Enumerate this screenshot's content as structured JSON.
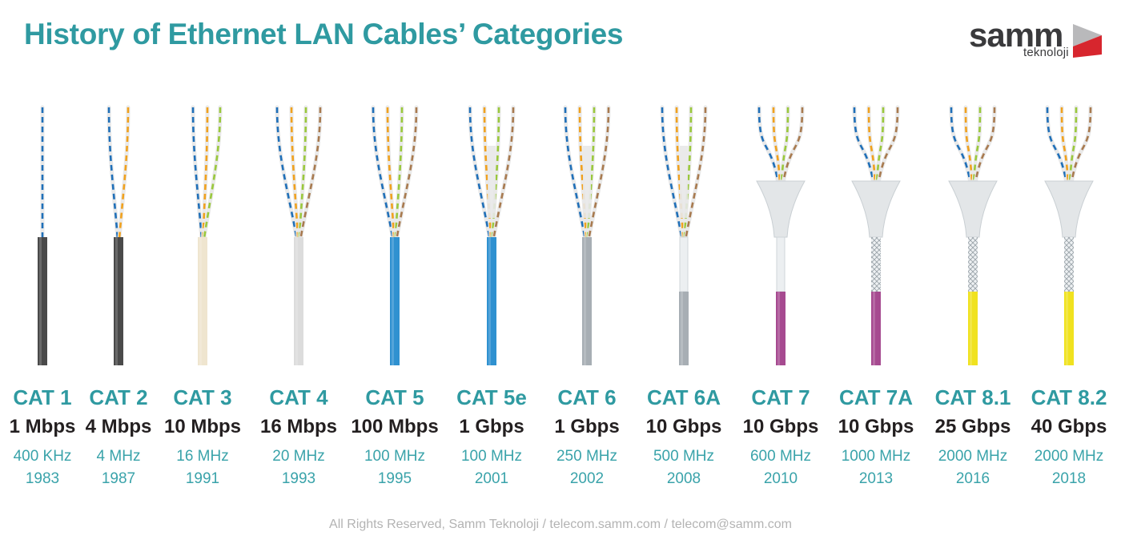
{
  "title": "History of Ethernet LAN Cables’ Categories",
  "logo": {
    "word": "samm",
    "sub": "teknoloji"
  },
  "footer": "All Rights Reserved, Samm Teknoloji / telecom.samm.com / telecom@samm.com",
  "colors": {
    "title": "#2f9aa1",
    "wire_blue": "#1f6fb8",
    "wire_orange": "#f0a11e",
    "wire_green": "#9ac83c",
    "wire_brown": "#a87a4f",
    "cat8_yellow": "#f0e21f",
    "cat7_magenta": "#a64a90"
  },
  "categories": [
    {
      "cat": "CAT 1",
      "speed": "1 Mbps",
      "freq": "400 KHz",
      "year": "1983",
      "jacket": "#4a4a4a",
      "pairs": 1,
      "shield": "none"
    },
    {
      "cat": "CAT 2",
      "speed": "4 Mbps",
      "freq": "4 MHz",
      "year": "1987",
      "jacket": "#4a4a4a",
      "pairs": 2,
      "shield": "none"
    },
    {
      "cat": "CAT 3",
      "speed": "10 Mbps",
      "freq": "16 MHz",
      "year": "1991",
      "jacket": "#efe5cf",
      "pairs": 3,
      "shield": "none"
    },
    {
      "cat": "CAT 4",
      "speed": "16 Mbps",
      "freq": "20 MHz",
      "year": "1993",
      "jacket": "#dcdcdc",
      "pairs": 4,
      "shield": "none"
    },
    {
      "cat": "CAT 5",
      "speed": "100 Mbps",
      "freq": "100 MHz",
      "year": "1995",
      "jacket": "#2f91d0",
      "pairs": 4,
      "shield": "none"
    },
    {
      "cat": "CAT 5e",
      "speed": "1 Gbps",
      "freq": "100 MHz",
      "year": "2001",
      "jacket": "#2f91d0",
      "pairs": 4,
      "shield": "separator"
    },
    {
      "cat": "CAT 6",
      "speed": "1 Gbps",
      "freq": "250 MHz",
      "year": "2002",
      "jacket": "#a7aeb4",
      "pairs": 4,
      "shield": "spline"
    },
    {
      "cat": "CAT 6A",
      "speed": "10 Gbps",
      "freq": "500 MHz",
      "year": "2008",
      "jacket": "#a7aeb4",
      "pairs": 4,
      "shield": "spline-foil"
    },
    {
      "cat": "CAT 7",
      "speed": "10 Gbps",
      "freq": "600 MHz",
      "year": "2010",
      "jacket": "#a64a90",
      "pairs": 4,
      "shield": "foil"
    },
    {
      "cat": "CAT 7A",
      "speed": "10 Gbps",
      "freq": "1000 MHz",
      "year": "2013",
      "jacket": "#a64a90",
      "pairs": 4,
      "shield": "braid"
    },
    {
      "cat": "CAT 8.1",
      "speed": "25 Gbps",
      "freq": "2000 MHz",
      "year": "2016",
      "jacket": "#f0e21f",
      "pairs": 4,
      "shield": "braid"
    },
    {
      "cat": "CAT 8.2",
      "speed": "40 Gbps",
      "freq": "2000 MHz",
      "year": "2018",
      "jacket": "#f0e21f",
      "pairs": 4,
      "shield": "braid"
    }
  ]
}
